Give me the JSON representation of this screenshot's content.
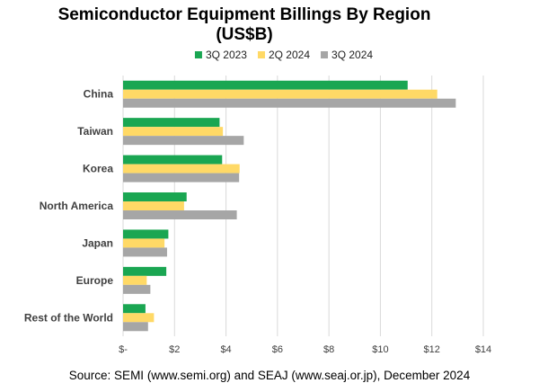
{
  "chart_data": {
    "type": "bar",
    "orientation": "horizontal",
    "title_line1": "Semiconductor Equipment Billings By Region",
    "title_line2": "(US$B)",
    "categories": [
      "China",
      "Taiwan",
      "Korea",
      "North America",
      "Japan",
      "Europe",
      "Rest of the World"
    ],
    "series": [
      {
        "name": "3Q 2023",
        "color": "#1aa652",
        "values": [
          11.06,
          3.75,
          3.85,
          2.47,
          1.76,
          1.68,
          0.87
        ]
      },
      {
        "name": "2Q 2024",
        "color": "#ffd966",
        "values": [
          12.21,
          3.88,
          4.53,
          2.37,
          1.61,
          0.92,
          1.2
        ]
      },
      {
        "name": "3Q 2024",
        "color": "#a6a6a6",
        "values": [
          12.93,
          4.69,
          4.51,
          4.42,
          1.71,
          1.06,
          0.97
        ]
      }
    ],
    "xlim": [
      0,
      14
    ],
    "xticks": [
      0,
      2,
      4,
      6,
      8,
      10,
      12,
      14
    ],
    "xtick_labels": [
      "$-",
      "$2",
      "$4",
      "$6",
      "$8",
      "$10",
      "$12",
      "$14"
    ],
    "legend_position": "top",
    "grid": true,
    "source": "Source: SEMI (www.semi.org) and SEAJ (www.seaj.or.jp), December 2024"
  }
}
